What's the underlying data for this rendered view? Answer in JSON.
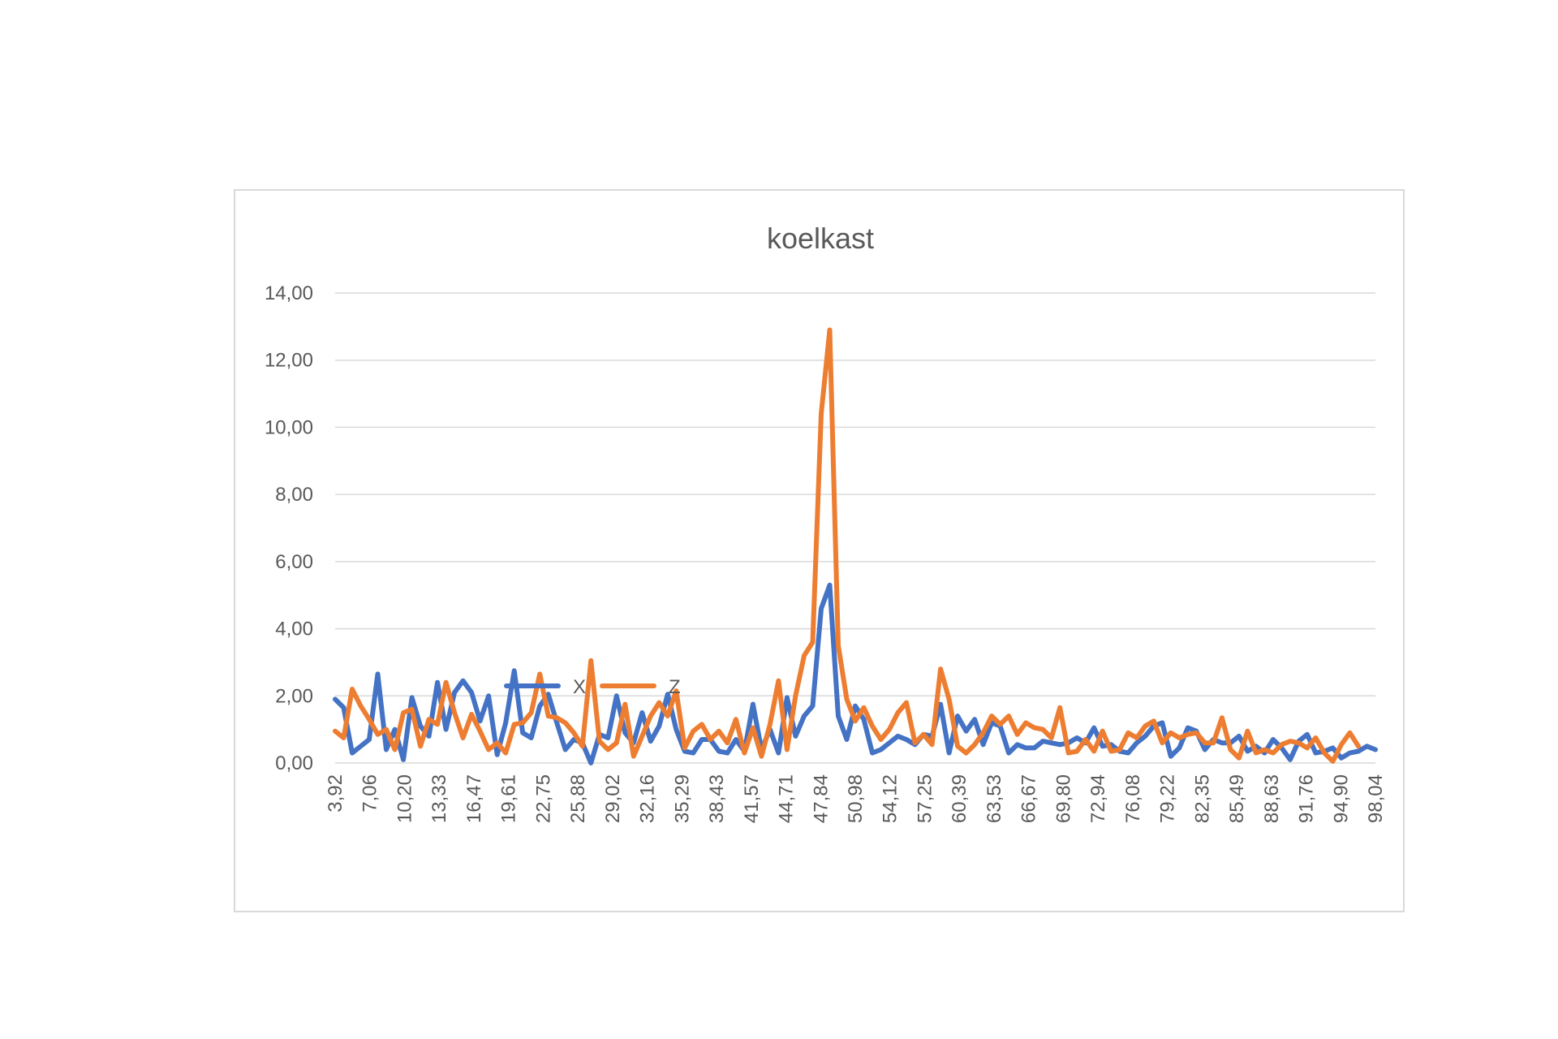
{
  "chart_data": {
    "type": "line",
    "title": "koelkast",
    "xlabel": "",
    "ylabel": "",
    "ylim": [
      0,
      14
    ],
    "yticks": [
      "0,00",
      "2,00",
      "4,00",
      "6,00",
      "8,00",
      "10,00",
      "12,00",
      "14,00"
    ],
    "grid": true,
    "legend_position": "bottom",
    "x_tick_labels": [
      "3,92",
      "7,06",
      "10,20",
      "13,33",
      "16,47",
      "19,61",
      "22,75",
      "25,88",
      "29,02",
      "32,16",
      "35,29",
      "38,43",
      "41,57",
      "44,71",
      "47,84",
      "50,98",
      "54,12",
      "57,25",
      "60,39",
      "63,53",
      "66,67",
      "69,80",
      "72,94",
      "76,08",
      "79,22",
      "82,35",
      "85,49",
      "88,63",
      "91,76",
      "94,90",
      "98,04"
    ],
    "series": [
      {
        "name": "X",
        "color": "#4472c4",
        "values": [
          1.9,
          1.65,
          0.3,
          0.5,
          0.7,
          2.65,
          0.4,
          1.0,
          0.1,
          1.95,
          1.1,
          0.8,
          2.4,
          1.0,
          2.1,
          2.45,
          2.1,
          1.25,
          2.0,
          0.25,
          1.2,
          2.75,
          0.9,
          0.75,
          1.7,
          2.05,
          1.2,
          0.4,
          0.7,
          0.6,
          0.0,
          0.85,
          0.75,
          2.0,
          0.9,
          0.6,
          1.5,
          0.65,
          1.1,
          2.05,
          1.0,
          0.35,
          0.3,
          0.7,
          0.7,
          0.35,
          0.3,
          0.7,
          0.35,
          1.75,
          0.4,
          1.0,
          0.3,
          1.95,
          0.8,
          1.4,
          1.7,
          4.6,
          5.3,
          1.4,
          0.7,
          1.7,
          1.3,
          0.3,
          0.4,
          0.6,
          0.8,
          0.7,
          0.55,
          0.85,
          0.8,
          1.75,
          0.3,
          1.4,
          0.95,
          1.3,
          0.55,
          1.2,
          1.1,
          0.3,
          0.55,
          0.45,
          0.45,
          0.65,
          0.6,
          0.55,
          0.6,
          0.75,
          0.6,
          1.05,
          0.5,
          0.55,
          0.35,
          0.3,
          0.6,
          0.8,
          1.1,
          1.2,
          0.2,
          0.45,
          1.05,
          0.95,
          0.4,
          0.7,
          0.6,
          0.6,
          0.8,
          0.35,
          0.5,
          0.3,
          0.7,
          0.45,
          0.1,
          0.65,
          0.85,
          0.3,
          0.35,
          0.45,
          0.15,
          0.3,
          0.35,
          0.5,
          0.4
        ]
      },
      {
        "name": "Z",
        "color": "#ed7d31",
        "values": [
          0.95,
          0.75,
          2.2,
          1.7,
          1.3,
          0.85,
          1.0,
          0.4,
          1.5,
          1.6,
          0.5,
          1.3,
          1.15,
          2.4,
          1.5,
          0.75,
          1.45,
          0.95,
          0.4,
          0.6,
          0.3,
          1.15,
          1.2,
          1.5,
          2.65,
          1.4,
          1.35,
          1.2,
          0.9,
          0.5,
          3.05,
          0.65,
          0.4,
          0.6,
          1.75,
          0.2,
          0.8,
          1.4,
          1.8,
          1.4,
          2.15,
          0.45,
          0.95,
          1.15,
          0.7,
          0.95,
          0.6,
          1.3,
          0.3,
          1.05,
          0.2,
          1.15,
          2.45,
          0.4,
          2.0,
          3.2,
          3.6,
          10.4,
          12.9,
          3.5,
          1.9,
          1.25,
          1.65,
          1.1,
          0.7,
          1.0,
          1.5,
          1.8,
          0.6,
          0.85,
          0.55,
          2.8,
          1.9,
          0.5,
          0.3,
          0.55,
          0.9,
          1.4,
          1.15,
          1.4,
          0.85,
          1.2,
          1.05,
          1.0,
          0.75,
          1.65,
          0.3,
          0.35,
          0.7,
          0.35,
          0.95,
          0.35,
          0.4,
          0.9,
          0.75,
          1.1,
          1.25,
          0.6,
          0.9,
          0.75,
          0.85,
          0.9,
          0.6,
          0.6,
          1.35,
          0.4,
          0.15,
          0.95,
          0.3,
          0.4,
          0.3,
          0.55,
          0.65,
          0.6,
          0.45,
          0.75,
          0.3,
          0.05,
          0.55,
          0.9,
          0.5
        ]
      }
    ]
  }
}
